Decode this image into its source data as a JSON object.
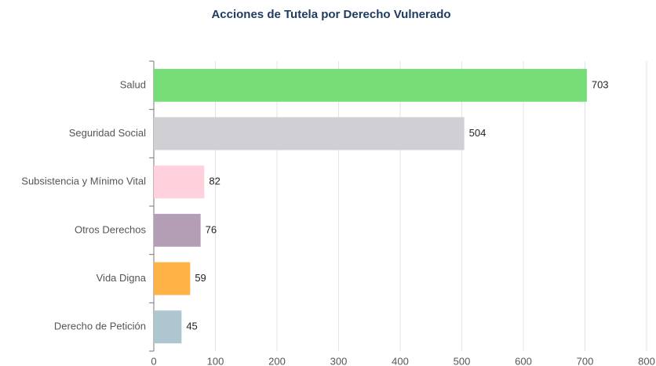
{
  "chart_data": {
    "type": "barh",
    "title": "Acciones de Tutela por Derecho Vulnerado",
    "categories": [
      "Salud",
      "Seguridad Social",
      "Subsistencia y Mínimo Vital",
      "Otros Derechos",
      "Vida Digna",
      "Derecho de Petición"
    ],
    "values": [
      703,
      504,
      82,
      76,
      59,
      45
    ],
    "colors": [
      "#77dd77",
      "#cfcfd4",
      "#ffd1dc",
      "#b39eb5",
      "#ffb347",
      "#aec6cf"
    ],
    "xlim": [
      0,
      800
    ],
    "xticks": [
      0,
      100,
      200,
      300,
      400,
      500,
      600,
      700,
      800
    ],
    "grid": true
  }
}
